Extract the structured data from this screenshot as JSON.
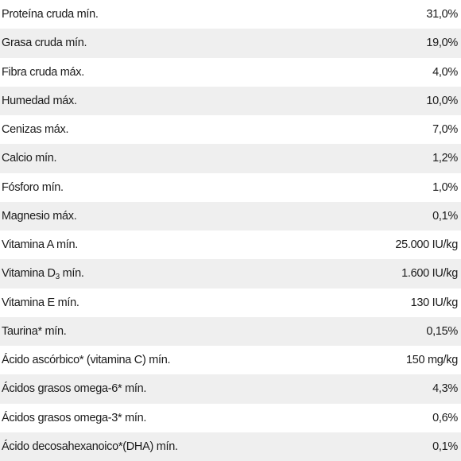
{
  "nutrients": [
    {
      "label": "Proteína cruda mín.",
      "value": "31,0%"
    },
    {
      "label": "Grasa cruda mín.",
      "value": "19,0%"
    },
    {
      "label": "Fibra cruda máx.",
      "value": "4,0%"
    },
    {
      "label": "Humedad máx.",
      "value": "10,0%"
    },
    {
      "label": "Cenizas máx.",
      "value": "7,0%"
    },
    {
      "label": "Calcio mín.",
      "value": "1,2%"
    },
    {
      "label": "Fósforo mín.",
      "value": "1,0%"
    },
    {
      "label": "Magnesio máx.",
      "value": "0,1%"
    },
    {
      "label": "Vitamina A mín.",
      "value": "25.000 IU/kg"
    },
    {
      "label_prefix": "Vitamina D",
      "label_sub": "3",
      "label_suffix": " mín.",
      "value": "1.600 IU/kg"
    },
    {
      "label": "Vitamina E mín.",
      "value": "130 IU/kg"
    },
    {
      "label": "Taurina* mín.",
      "value": "0,15%"
    },
    {
      "label": "Ácido ascórbico* (vitamina C) mín.",
      "value": "150 mg/kg"
    },
    {
      "label": "Ácidos grasos omega-6* mín.",
      "value": "4,3%"
    },
    {
      "label": "Ácidos grasos omega-3* mín.",
      "value": "0,6%"
    },
    {
      "label": "Ácido decosahexanoico*(DHA) mín.",
      "value": "0,1%"
    }
  ]
}
